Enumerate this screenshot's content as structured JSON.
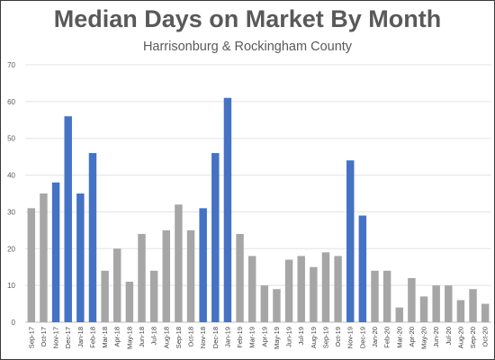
{
  "chart_data": {
    "type": "bar",
    "title": "Median Days on Market By Month",
    "subtitle": "Harrisonburg & Rockingham County",
    "xlabel": "",
    "ylabel": "",
    "ylim": [
      0,
      70
    ],
    "yticks": [
      0,
      10,
      20,
      30,
      40,
      50,
      60,
      70
    ],
    "grid": true,
    "legend": "none",
    "colors": {
      "highlight": "#4472C4",
      "default": "#A6A6A6"
    },
    "categories": [
      "Sep-17",
      "Oct-17",
      "Nov-17",
      "Dec-17",
      "Jan-18",
      "Feb-18",
      "Mar-18",
      "Apr-18",
      "May-18",
      "Jun-18",
      "Jul-18",
      "Aug-18",
      "Sep-18",
      "Oct-18",
      "Nov-18",
      "Dec-18",
      "Jan-19",
      "Feb-19",
      "Mar-19",
      "Apr-19",
      "May-19",
      "Jun-19",
      "Jul-19",
      "Aug-19",
      "Sep-19",
      "Oct-19",
      "Nov-19",
      "Dec-19",
      "Jan-20",
      "Feb-20",
      "Mar-20",
      "Apr-20",
      "May-20",
      "Jun-20",
      "Jul-20",
      "Aug-20",
      "Sep-20",
      "Oct-20"
    ],
    "values": [
      31,
      35,
      38,
      56,
      35,
      46,
      14,
      20,
      11,
      24,
      14,
      25,
      32,
      25,
      31,
      46,
      61,
      24,
      18,
      10,
      9,
      17,
      18,
      15,
      19,
      18,
      44,
      29,
      14,
      14,
      4,
      12,
      7,
      10,
      10,
      6,
      9,
      5
    ],
    "highlighted": [
      false,
      false,
      true,
      true,
      true,
      true,
      false,
      false,
      false,
      false,
      false,
      false,
      false,
      false,
      true,
      true,
      true,
      false,
      false,
      false,
      false,
      false,
      false,
      false,
      false,
      false,
      true,
      true,
      false,
      false,
      false,
      false,
      false,
      false,
      false,
      false,
      false,
      false
    ]
  }
}
